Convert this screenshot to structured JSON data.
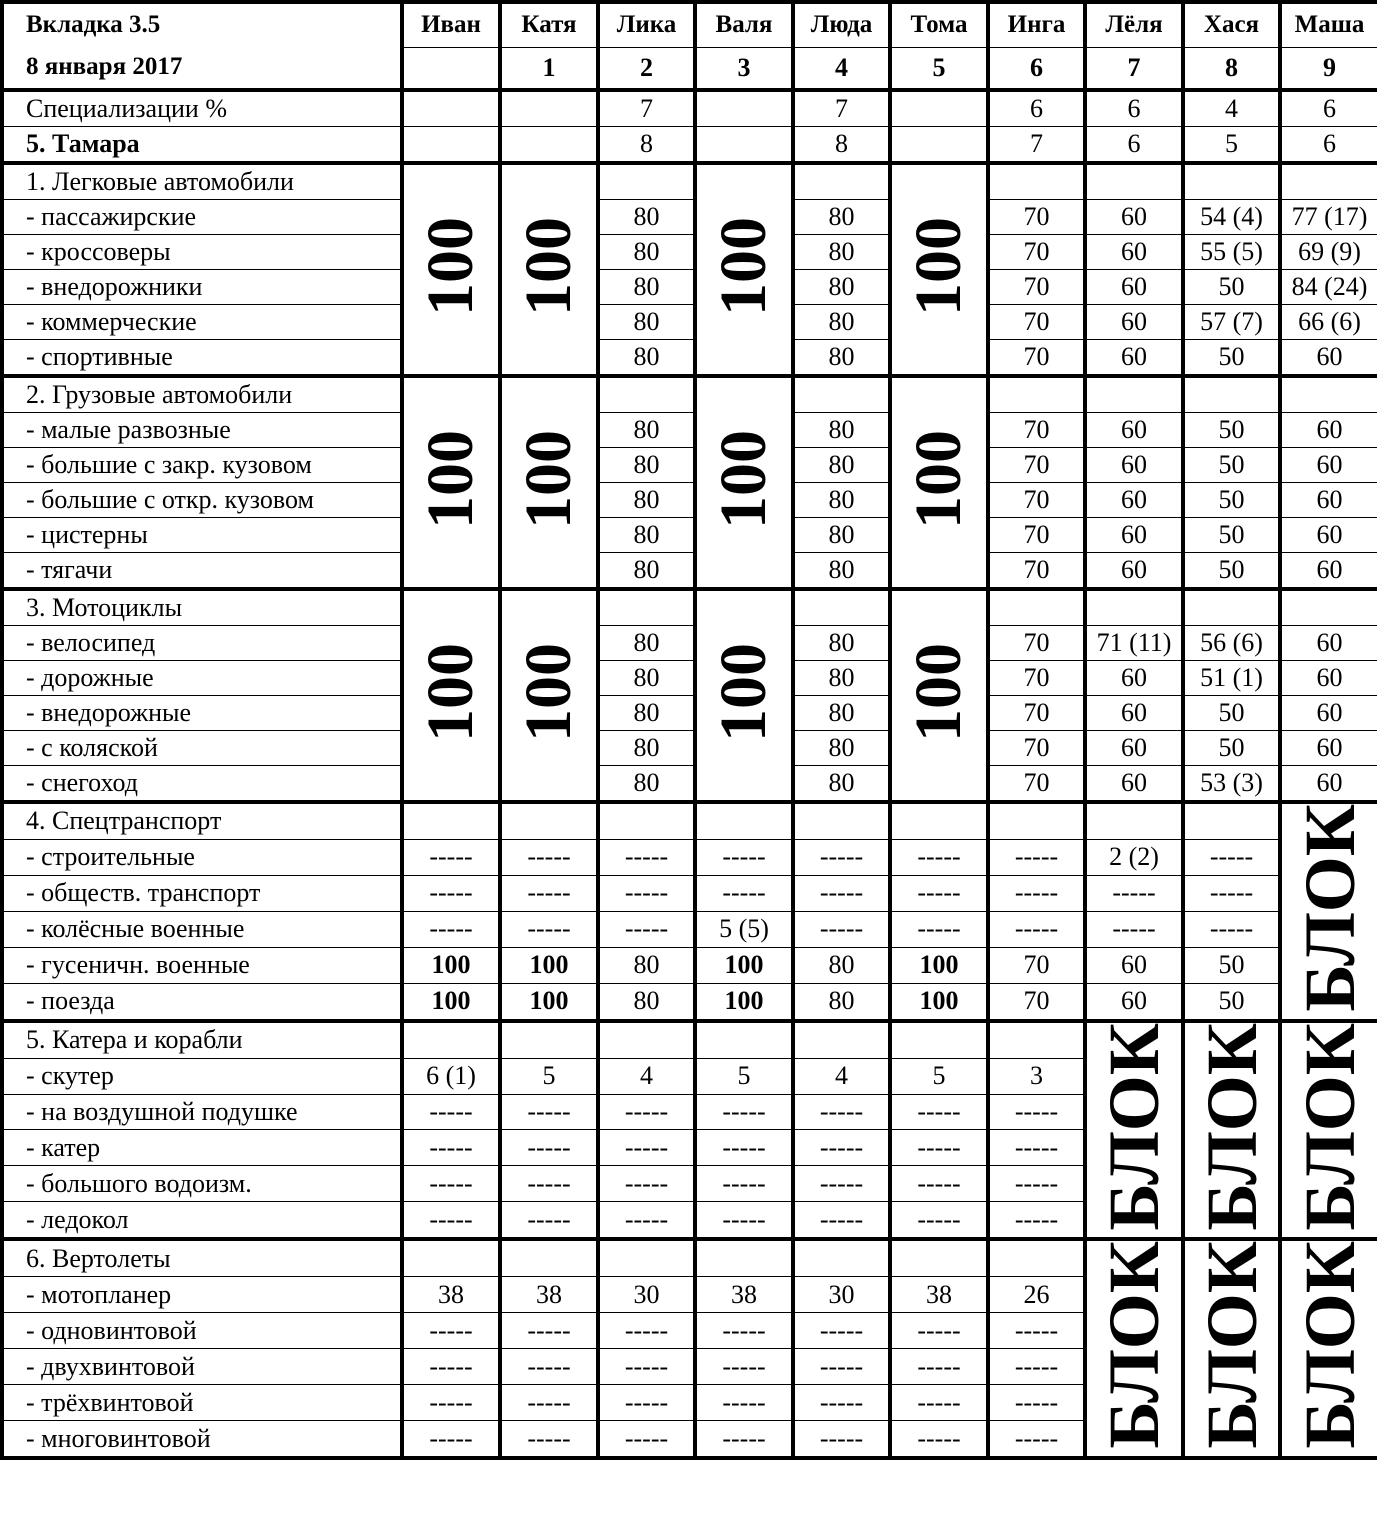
{
  "header": {
    "title": "Вкладка 3.5",
    "date": "8 января 2017"
  },
  "columns": [
    {
      "name": "Иван",
      "number": ""
    },
    {
      "name": "Катя",
      "number": "1"
    },
    {
      "name": "Лика",
      "number": "2"
    },
    {
      "name": "Валя",
      "number": "3"
    },
    {
      "name": "Люда",
      "number": "4"
    },
    {
      "name": "Тома",
      "number": "5"
    },
    {
      "name": "Инга",
      "number": "6"
    },
    {
      "name": "Лёля",
      "number": "7"
    },
    {
      "name": "Хася",
      "number": "8"
    },
    {
      "name": "Маша",
      "number": "9"
    }
  ],
  "specializations": {
    "label": "Специализации %",
    "values": [
      "",
      "",
      "7",
      "",
      "7",
      "",
      "6",
      "6",
      "4",
      "6"
    ]
  },
  "tamara": {
    "label": "5. Тамара",
    "values": [
      "",
      "",
      "8",
      "",
      "8",
      "",
      "7",
      "6",
      "5",
      "6"
    ]
  },
  "groups": [
    {
      "title": "1. Легковые автомобили",
      "merged": {
        "0": "100",
        "1": "100",
        "3": "100",
        "5": "100"
      },
      "rows": [
        {
          "label": "- пассажирские",
          "values": [
            null,
            null,
            "80",
            null,
            "80",
            null,
            "70",
            "60",
            "54 (4)",
            "77 (17)"
          ]
        },
        {
          "label": "- кроссоверы",
          "values": [
            null,
            null,
            "80",
            null,
            "80",
            null,
            "70",
            "60",
            "55 (5)",
            "69 (9)"
          ]
        },
        {
          "label": "- внедорожники",
          "values": [
            null,
            null,
            "80",
            null,
            "80",
            null,
            "70",
            "60",
            "50",
            "84 (24)"
          ]
        },
        {
          "label": "- коммерческие",
          "values": [
            null,
            null,
            "80",
            null,
            "80",
            null,
            "70",
            "60",
            "57 (7)",
            "66 (6)"
          ]
        },
        {
          "label": "- спортивные",
          "values": [
            null,
            null,
            "80",
            null,
            "80",
            null,
            "70",
            "60",
            "50",
            "60"
          ]
        }
      ]
    },
    {
      "title": "2. Грузовые автомобили",
      "merged": {
        "0": "100",
        "1": "100",
        "3": "100",
        "5": "100"
      },
      "rows": [
        {
          "label": "- малые развозные",
          "values": [
            null,
            null,
            "80",
            null,
            "80",
            null,
            "70",
            "60",
            "50",
            "60"
          ]
        },
        {
          "label": "- большие с закр. кузовом",
          "values": [
            null,
            null,
            "80",
            null,
            "80",
            null,
            "70",
            "60",
            "50",
            "60"
          ]
        },
        {
          "label": "- большие с откр. кузовом",
          "values": [
            null,
            null,
            "80",
            null,
            "80",
            null,
            "70",
            "60",
            "50",
            "60"
          ]
        },
        {
          "label": "- цистерны",
          "values": [
            null,
            null,
            "80",
            null,
            "80",
            null,
            "70",
            "60",
            "50",
            "60"
          ]
        },
        {
          "label": "- тягачи",
          "values": [
            null,
            null,
            "80",
            null,
            "80",
            null,
            "70",
            "60",
            "50",
            "60"
          ]
        }
      ]
    },
    {
      "title": "3. Мотоциклы",
      "merged": {
        "0": "100",
        "1": "100",
        "3": "100",
        "5": "100"
      },
      "rows": [
        {
          "label": "- велосипед",
          "values": [
            null,
            null,
            "80",
            null,
            "80",
            null,
            "70",
            "71 (11)",
            "56 (6)",
            "60"
          ]
        },
        {
          "label": "- дорожные",
          "values": [
            null,
            null,
            "80",
            null,
            "80",
            null,
            "70",
            "60",
            "51 (1)",
            "60"
          ]
        },
        {
          "label": "- внедорожные",
          "values": [
            null,
            null,
            "80",
            null,
            "80",
            null,
            "70",
            "60",
            "50",
            "60"
          ]
        },
        {
          "label": "- с коляской",
          "values": [
            null,
            null,
            "80",
            null,
            "80",
            null,
            "70",
            "60",
            "50",
            "60"
          ]
        },
        {
          "label": "- снегоход",
          "values": [
            null,
            null,
            "80",
            null,
            "80",
            null,
            "70",
            "60",
            "53 (3)",
            "60"
          ]
        }
      ]
    },
    {
      "title": "4. Спецтранспорт",
      "merged": {
        "9": "БЛОК"
      },
      "rows": [
        {
          "label": "- строительные",
          "values": [
            "-----",
            "-----",
            "-----",
            "-----",
            "-----",
            "-----",
            "-----",
            "2 (2)",
            "-----",
            null
          ]
        },
        {
          "label": "- обществ. транспорт",
          "values": [
            "-----",
            "-----",
            "-----",
            "-----",
            "-----",
            "-----",
            "-----",
            "-----",
            "-----",
            null
          ]
        },
        {
          "label": "- колёсные военные",
          "values": [
            "-----",
            "-----",
            "-----",
            "5 (5)",
            "-----",
            "-----",
            "-----",
            "-----",
            "-----",
            null
          ]
        },
        {
          "label": "- гусеничн. военные",
          "values": [
            "100",
            "100",
            "80",
            "100",
            "80",
            "100",
            "70",
            "60",
            "50",
            null
          ]
        },
        {
          "label": "- поезда",
          "values": [
            "100",
            "100",
            "80",
            "100",
            "80",
            "100",
            "70",
            "60",
            "50",
            null
          ]
        }
      ]
    },
    {
      "title": "5. Катера и корабли",
      "merged": {
        "7": "БЛОК",
        "8": "БЛОК",
        "9": "БЛОК"
      },
      "rows": [
        {
          "label": "- скутер",
          "values": [
            "6 (1)",
            "5",
            "4",
            "5",
            "4",
            "5",
            "3",
            null,
            null,
            null
          ]
        },
        {
          "label": "- на воздушной подушке",
          "values": [
            "-----",
            "-----",
            "-----",
            "-----",
            "-----",
            "-----",
            "-----",
            null,
            null,
            null
          ]
        },
        {
          "label": "- катер",
          "values": [
            "-----",
            "-----",
            "-----",
            "-----",
            "-----",
            "-----",
            "-----",
            null,
            null,
            null
          ]
        },
        {
          "label": "- большого водоизм.",
          "values": [
            "-----",
            "-----",
            "-----",
            "-----",
            "-----",
            "-----",
            "-----",
            null,
            null,
            null
          ]
        },
        {
          "label": "- ледокол",
          "values": [
            "-----",
            "-----",
            "-----",
            "-----",
            "-----",
            "-----",
            "-----",
            null,
            null,
            null
          ]
        }
      ]
    },
    {
      "title": "6. Вертолеты",
      "merged": {
        "7": "БЛОК",
        "8": "БЛОК",
        "9": "БЛОК"
      },
      "rows": [
        {
          "label": "- мотопланер",
          "values": [
            "38",
            "38",
            "30",
            "38",
            "30",
            "38",
            "26",
            null,
            null,
            null
          ]
        },
        {
          "label": "- одновинтовой",
          "values": [
            "-----",
            "-----",
            "-----",
            "-----",
            "-----",
            "-----",
            "-----",
            null,
            null,
            null
          ]
        },
        {
          "label": "- двухвинтовой",
          "values": [
            "-----",
            "-----",
            "-----",
            "-----",
            "-----",
            "-----",
            "-----",
            null,
            null,
            null
          ]
        },
        {
          "label": "- трёхвинтовой",
          "values": [
            "-----",
            "-----",
            "-----",
            "-----",
            "-----",
            "-----",
            "-----",
            null,
            null,
            null
          ]
        },
        {
          "label": "- многовинтовой",
          "values": [
            "-----",
            "-----",
            "-----",
            "-----",
            "-----",
            "-----",
            "-----",
            null,
            null,
            null
          ]
        }
      ]
    }
  ]
}
